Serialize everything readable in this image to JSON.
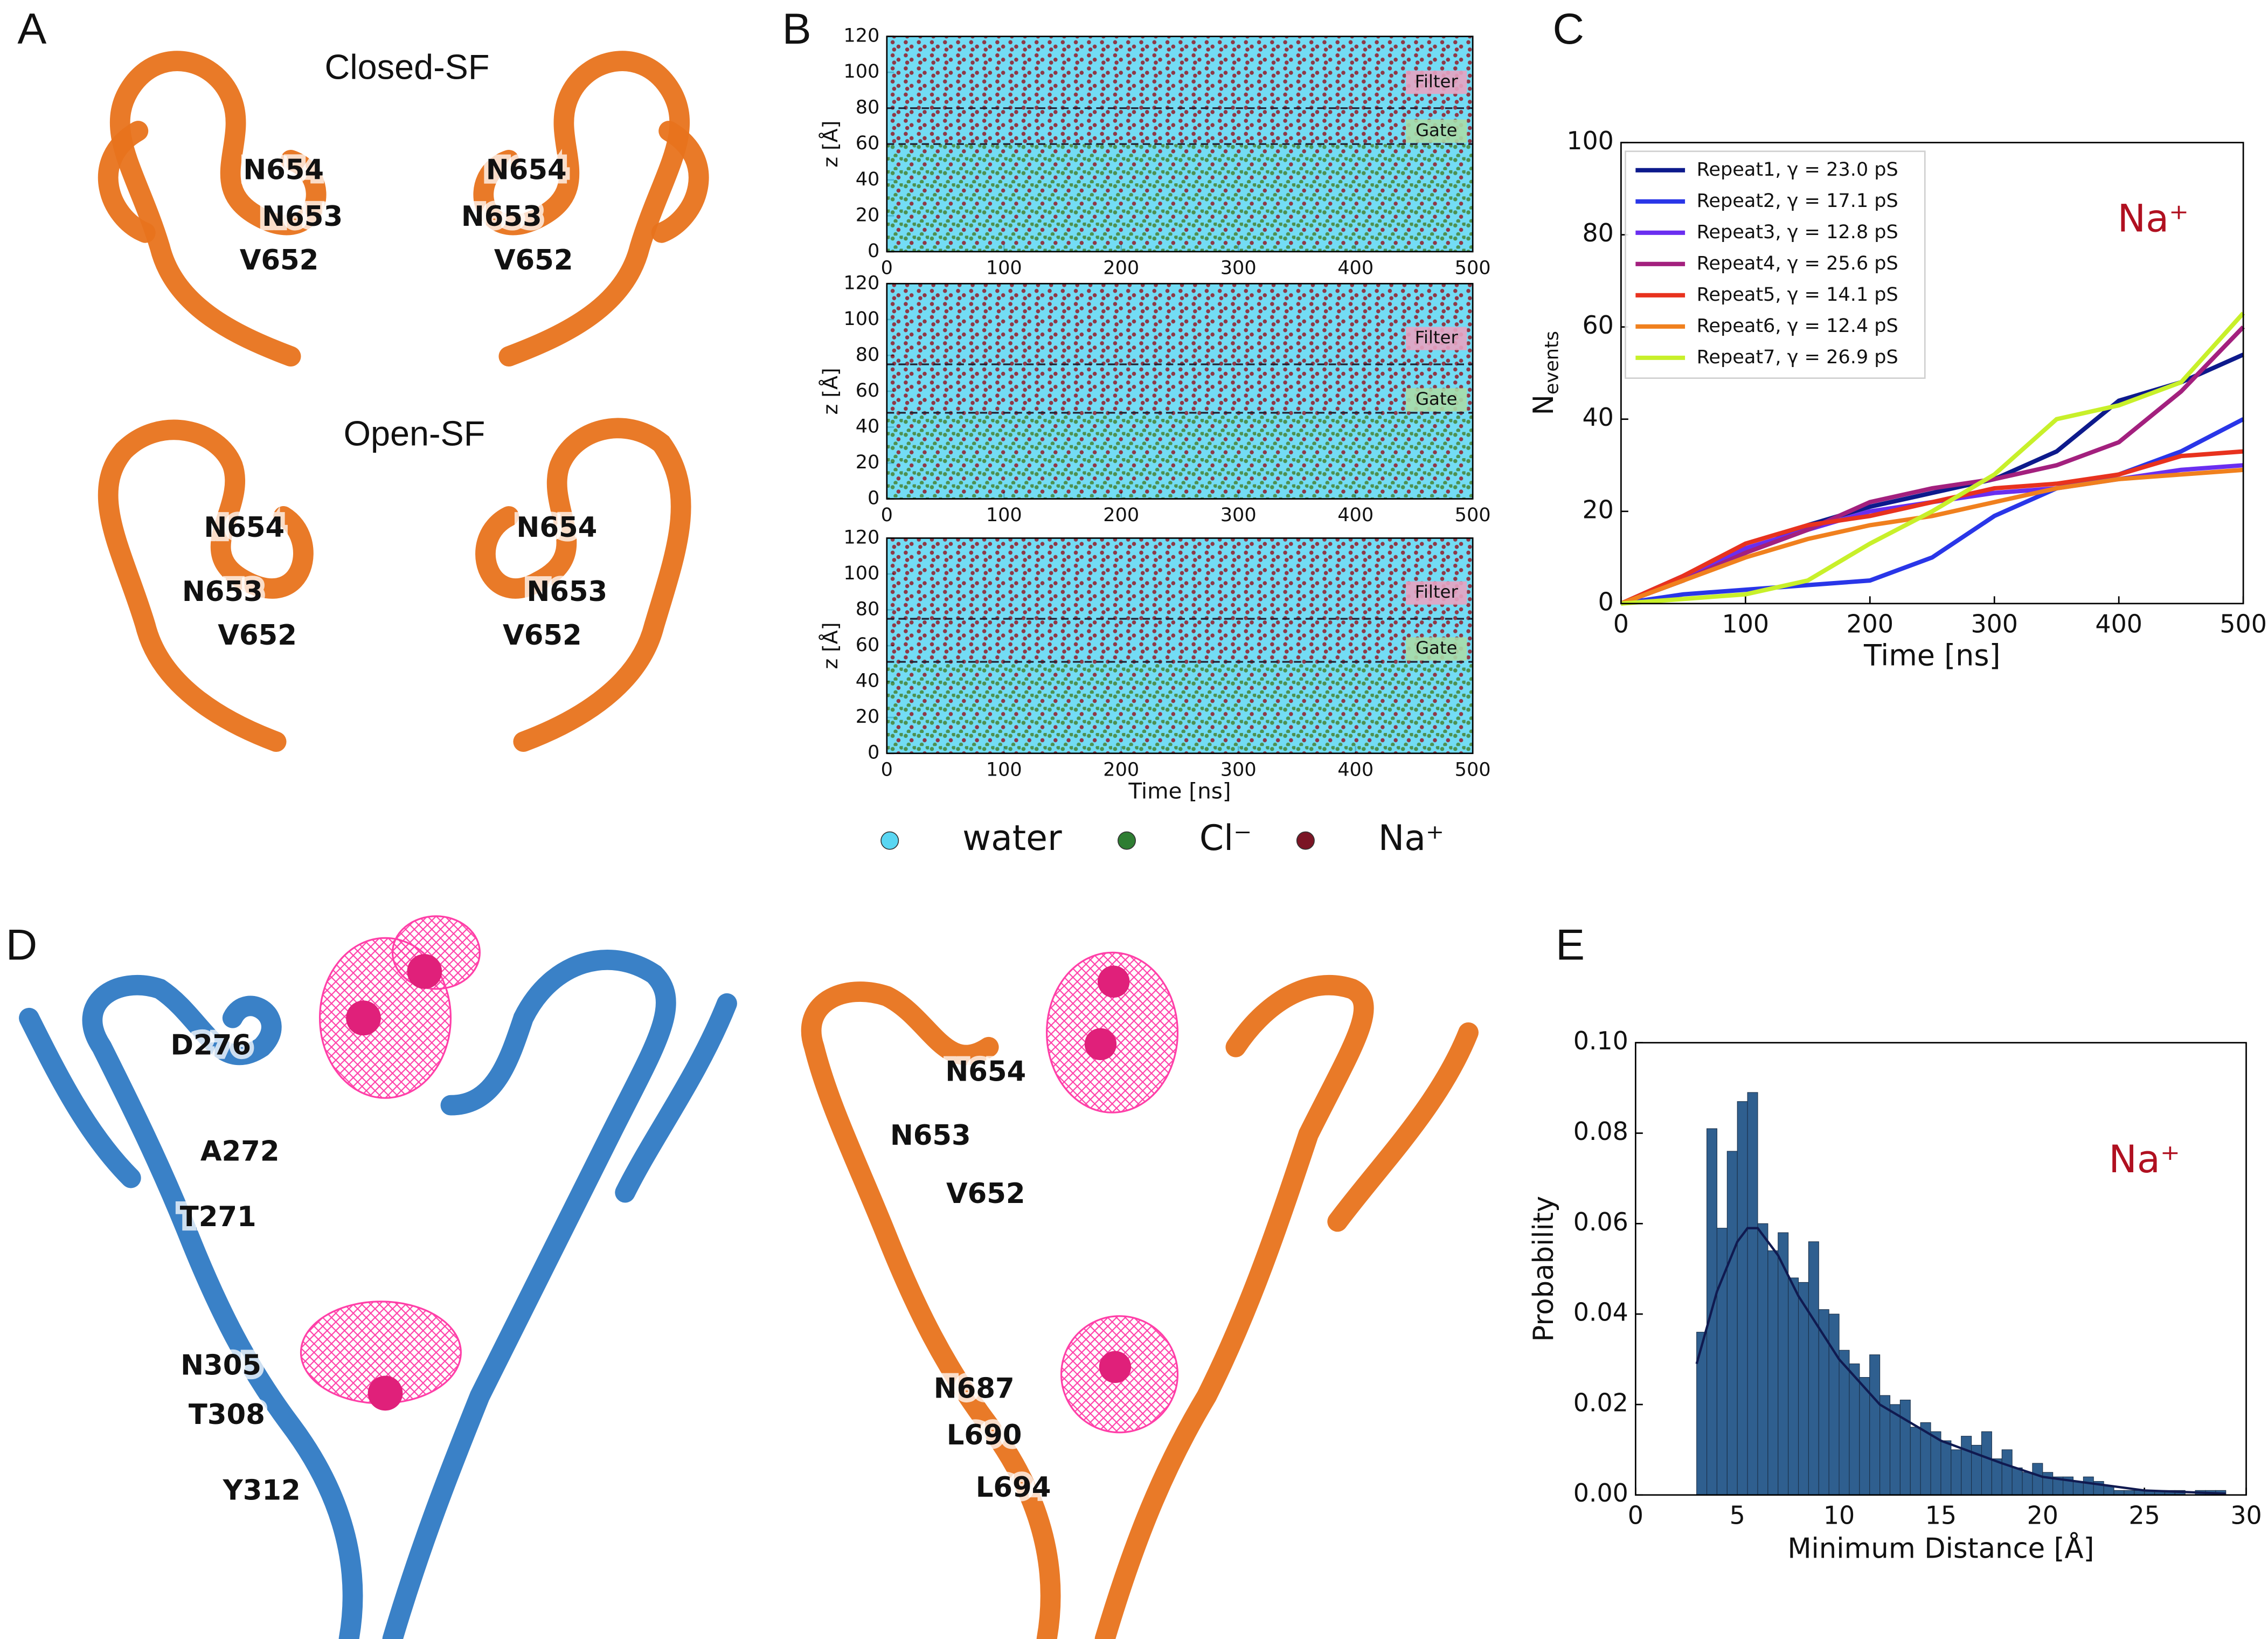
{
  "panel_labels": [
    "A",
    "B",
    "C",
    "D",
    "E"
  ],
  "panel_a": {
    "closed_title": "Closed-SF",
    "open_title": "Open-SF",
    "closed_labels": [
      "N654",
      "N654",
      "N653",
      "N653",
      "V652",
      "V652"
    ],
    "open_labels": [
      "N654",
      "N654",
      "N653",
      "N653",
      "V652",
      "V652"
    ]
  },
  "panel_d": {
    "left_labels": [
      "D276",
      "A272",
      "T271",
      "N305",
      "T308",
      "Y312"
    ],
    "right_labels": [
      "N654",
      "N653",
      "V652",
      "N687",
      "L690",
      "L694"
    ]
  },
  "panel_b_legend": [
    {
      "name": "water",
      "color": "#5ad6f2"
    },
    {
      "name": "Cl⁻",
      "color": "#2e7d32"
    },
    {
      "name": "Na⁺",
      "color": "#7b1525"
    }
  ],
  "chart_data": [
    {
      "type": "raster",
      "ylabel": "z [Å]",
      "xlim": [
        0,
        500
      ],
      "ylim": [
        0,
        120
      ],
      "xticks": [
        0,
        100,
        200,
        300,
        400,
        500
      ],
      "yticks": [
        0,
        20,
        40,
        60,
        80,
        100,
        120
      ],
      "hlines": [
        80,
        60
      ],
      "annotations": [
        "Filter",
        "Gate"
      ]
    },
    {
      "type": "raster",
      "ylabel": "z [Å]",
      "xlim": [
        0,
        500
      ],
      "ylim": [
        0,
        120
      ],
      "xticks": [
        0,
        100,
        200,
        300,
        400,
        500
      ],
      "yticks": [
        0,
        20,
        40,
        60,
        80,
        100,
        120
      ],
      "hlines": [
        75,
        48
      ],
      "annotations": [
        "Filter",
        "Gate"
      ]
    },
    {
      "type": "raster",
      "ylabel": "z [Å]",
      "xlabel": "Time [ns]",
      "xlim": [
        0,
        500
      ],
      "ylim": [
        0,
        120
      ],
      "xticks": [
        0,
        100,
        200,
        300,
        400,
        500
      ],
      "yticks": [
        0,
        20,
        40,
        60,
        80,
        100,
        120
      ],
      "hlines": [
        75,
        51
      ],
      "annotations": [
        "Filter",
        "Gate"
      ]
    },
    {
      "type": "line",
      "xlabel": "Time [ns]",
      "ylabel": "N",
      "ylabel_sub": "events",
      "annotation": "Na⁺",
      "xlim": [
        0,
        500
      ],
      "ylim": [
        0,
        100
      ],
      "xticks": [
        0,
        100,
        200,
        300,
        400,
        500
      ],
      "yticks": [
        0,
        20,
        40,
        60,
        80,
        100
      ],
      "x": [
        0,
        50,
        100,
        150,
        200,
        250,
        300,
        350,
        400,
        450,
        500
      ],
      "series": [
        {
          "name": "Repeat1, γ = 23.0 pS",
          "color": "#0d1a8c",
          "values": [
            0,
            5,
            11,
            17,
            21,
            24,
            27,
            33,
            44,
            48,
            54
          ]
        },
        {
          "name": "Repeat2, γ = 17.1 pS",
          "color": "#2936e8",
          "values": [
            0,
            2,
            3,
            4,
            5,
            10,
            19,
            25,
            28,
            33,
            40
          ]
        },
        {
          "name": "Repeat3, γ = 12.8 pS",
          "color": "#6a2ef0",
          "values": [
            0,
            6,
            12,
            16,
            20,
            22,
            24,
            25,
            27,
            29,
            30
          ]
        },
        {
          "name": "Repeat4, γ = 25.6 pS",
          "color": "#a3207e",
          "values": [
            0,
            5,
            11,
            16,
            22,
            25,
            27,
            30,
            35,
            46,
            60
          ]
        },
        {
          "name": "Repeat5, γ = 14.1 pS",
          "color": "#e8321e",
          "values": [
            0,
            6,
            13,
            17,
            19,
            22,
            25,
            26,
            28,
            32,
            33
          ]
        },
        {
          "name": "Repeat6, γ = 12.4 pS",
          "color": "#f0801e",
          "values": [
            0,
            5,
            10,
            14,
            17,
            19,
            22,
            25,
            27,
            28,
            29
          ]
        },
        {
          "name": "Repeat7, γ = 26.9 pS",
          "color": "#c8f02a",
          "values": [
            0,
            1,
            2,
            5,
            13,
            20,
            28,
            40,
            43,
            48,
            63
          ]
        }
      ]
    },
    {
      "type": "histogram",
      "xlabel": "Minimum Distance [Å]",
      "ylabel": "Probability",
      "annotation": "Na⁺",
      "color": "#2f5f8f",
      "line_color": "#101a50",
      "xlim": [
        0,
        30
      ],
      "ylim": [
        0,
        0.1
      ],
      "xticks": [
        0,
        5,
        10,
        15,
        20,
        25,
        30
      ],
      "yticks": [
        {
          "value": 0,
          "label": "0.00"
        },
        {
          "value": 0.02,
          "label": "0.02"
        },
        {
          "value": 0.04,
          "label": "0.04"
        },
        {
          "value": 0.06,
          "label": "0.06"
        },
        {
          "value": 0.08,
          "label": "0.08"
        },
        {
          "value": 0.1,
          "label": "0.10"
        }
      ],
      "bins": [
        3,
        3.5,
        4,
        4.5,
        5,
        5.5,
        6,
        6.5,
        7,
        7.5,
        8,
        8.5,
        9,
        9.5,
        10,
        10.5,
        11,
        11.5,
        12,
        12.5,
        13,
        13.5,
        14,
        14.5,
        15,
        15.5,
        16,
        16.5,
        17,
        17.5,
        18,
        18.5,
        19,
        19.5,
        20,
        20.5,
        21,
        21.5,
        22,
        22.5,
        23,
        23.5,
        24,
        24.5,
        25,
        25.5,
        26,
        26.5,
        27,
        27.5,
        28,
        28.5,
        29
      ],
      "values": [
        0.036,
        0.081,
        0.059,
        0.076,
        0.087,
        0.089,
        0.06,
        0.054,
        0.058,
        0.048,
        0.047,
        0.056,
        0.041,
        0.04,
        0.032,
        0.029,
        0.026,
        0.031,
        0.022,
        0.02,
        0.021,
        0.015,
        0.016,
        0.014,
        0.012,
        0.01,
        0.013,
        0.011,
        0.014,
        0.008,
        0.01,
        0.006,
        0.005,
        0.007,
        0.005,
        0.004,
        0.004,
        0.003,
        0.004,
        0.003,
        0.002,
        0.001,
        0.001,
        0.001,
        0.001,
        0.001,
        0.001,
        0.001,
        0,
        0.001,
        0.001,
        0.001
      ],
      "kde": {
        "x": [
          3,
          4,
          5,
          5.5,
          6,
          7,
          8,
          10,
          12,
          15,
          18,
          20,
          25,
          29
        ],
        "y": [
          0.029,
          0.045,
          0.056,
          0.059,
          0.059,
          0.053,
          0.044,
          0.03,
          0.02,
          0.012,
          0.007,
          0.004,
          0.001,
          0.0003
        ]
      }
    }
  ]
}
